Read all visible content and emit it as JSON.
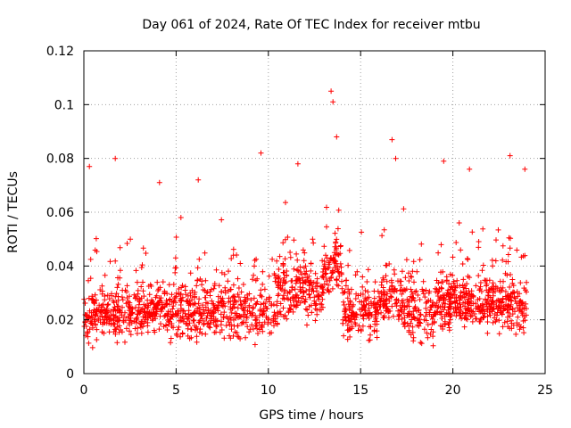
{
  "chart_data": {
    "type": "scatter",
    "title": "Day 061 of 2024, Rate Of TEC Index for receiver mtbu",
    "xlabel": "GPS time / hours",
    "ylabel": "ROTI / TECUs",
    "xlim": [
      0,
      25
    ],
    "ylim": [
      0,
      0.12
    ],
    "xticks": [
      "0",
      "5",
      "10",
      "15",
      "20",
      "25"
    ],
    "yticks": [
      "0",
      "0.02",
      "0.04",
      "0.06",
      "0.08",
      "0.1",
      "0.12"
    ],
    "grid": true,
    "marker": "plus",
    "series": [
      {
        "name": "ROTI",
        "color": "#ff0000",
        "x_range": [
          0,
          24
        ],
        "typical_band": [
          0.01,
          0.035
        ],
        "notable_points": [
          {
            "x": 0.3,
            "y": 0.077
          },
          {
            "x": 1.7,
            "y": 0.08
          },
          {
            "x": 4.1,
            "y": 0.071
          },
          {
            "x": 6.2,
            "y": 0.072
          },
          {
            "x": 9.6,
            "y": 0.082
          },
          {
            "x": 11.6,
            "y": 0.078
          },
          {
            "x": 13.4,
            "y": 0.105
          },
          {
            "x": 13.5,
            "y": 0.101
          },
          {
            "x": 13.7,
            "y": 0.088
          },
          {
            "x": 16.7,
            "y": 0.087
          },
          {
            "x": 16.9,
            "y": 0.08
          },
          {
            "x": 19.5,
            "y": 0.079
          },
          {
            "x": 20.9,
            "y": 0.076
          },
          {
            "x": 23.1,
            "y": 0.081
          },
          {
            "x": 23.9,
            "y": 0.076
          }
        ]
      }
    ]
  }
}
